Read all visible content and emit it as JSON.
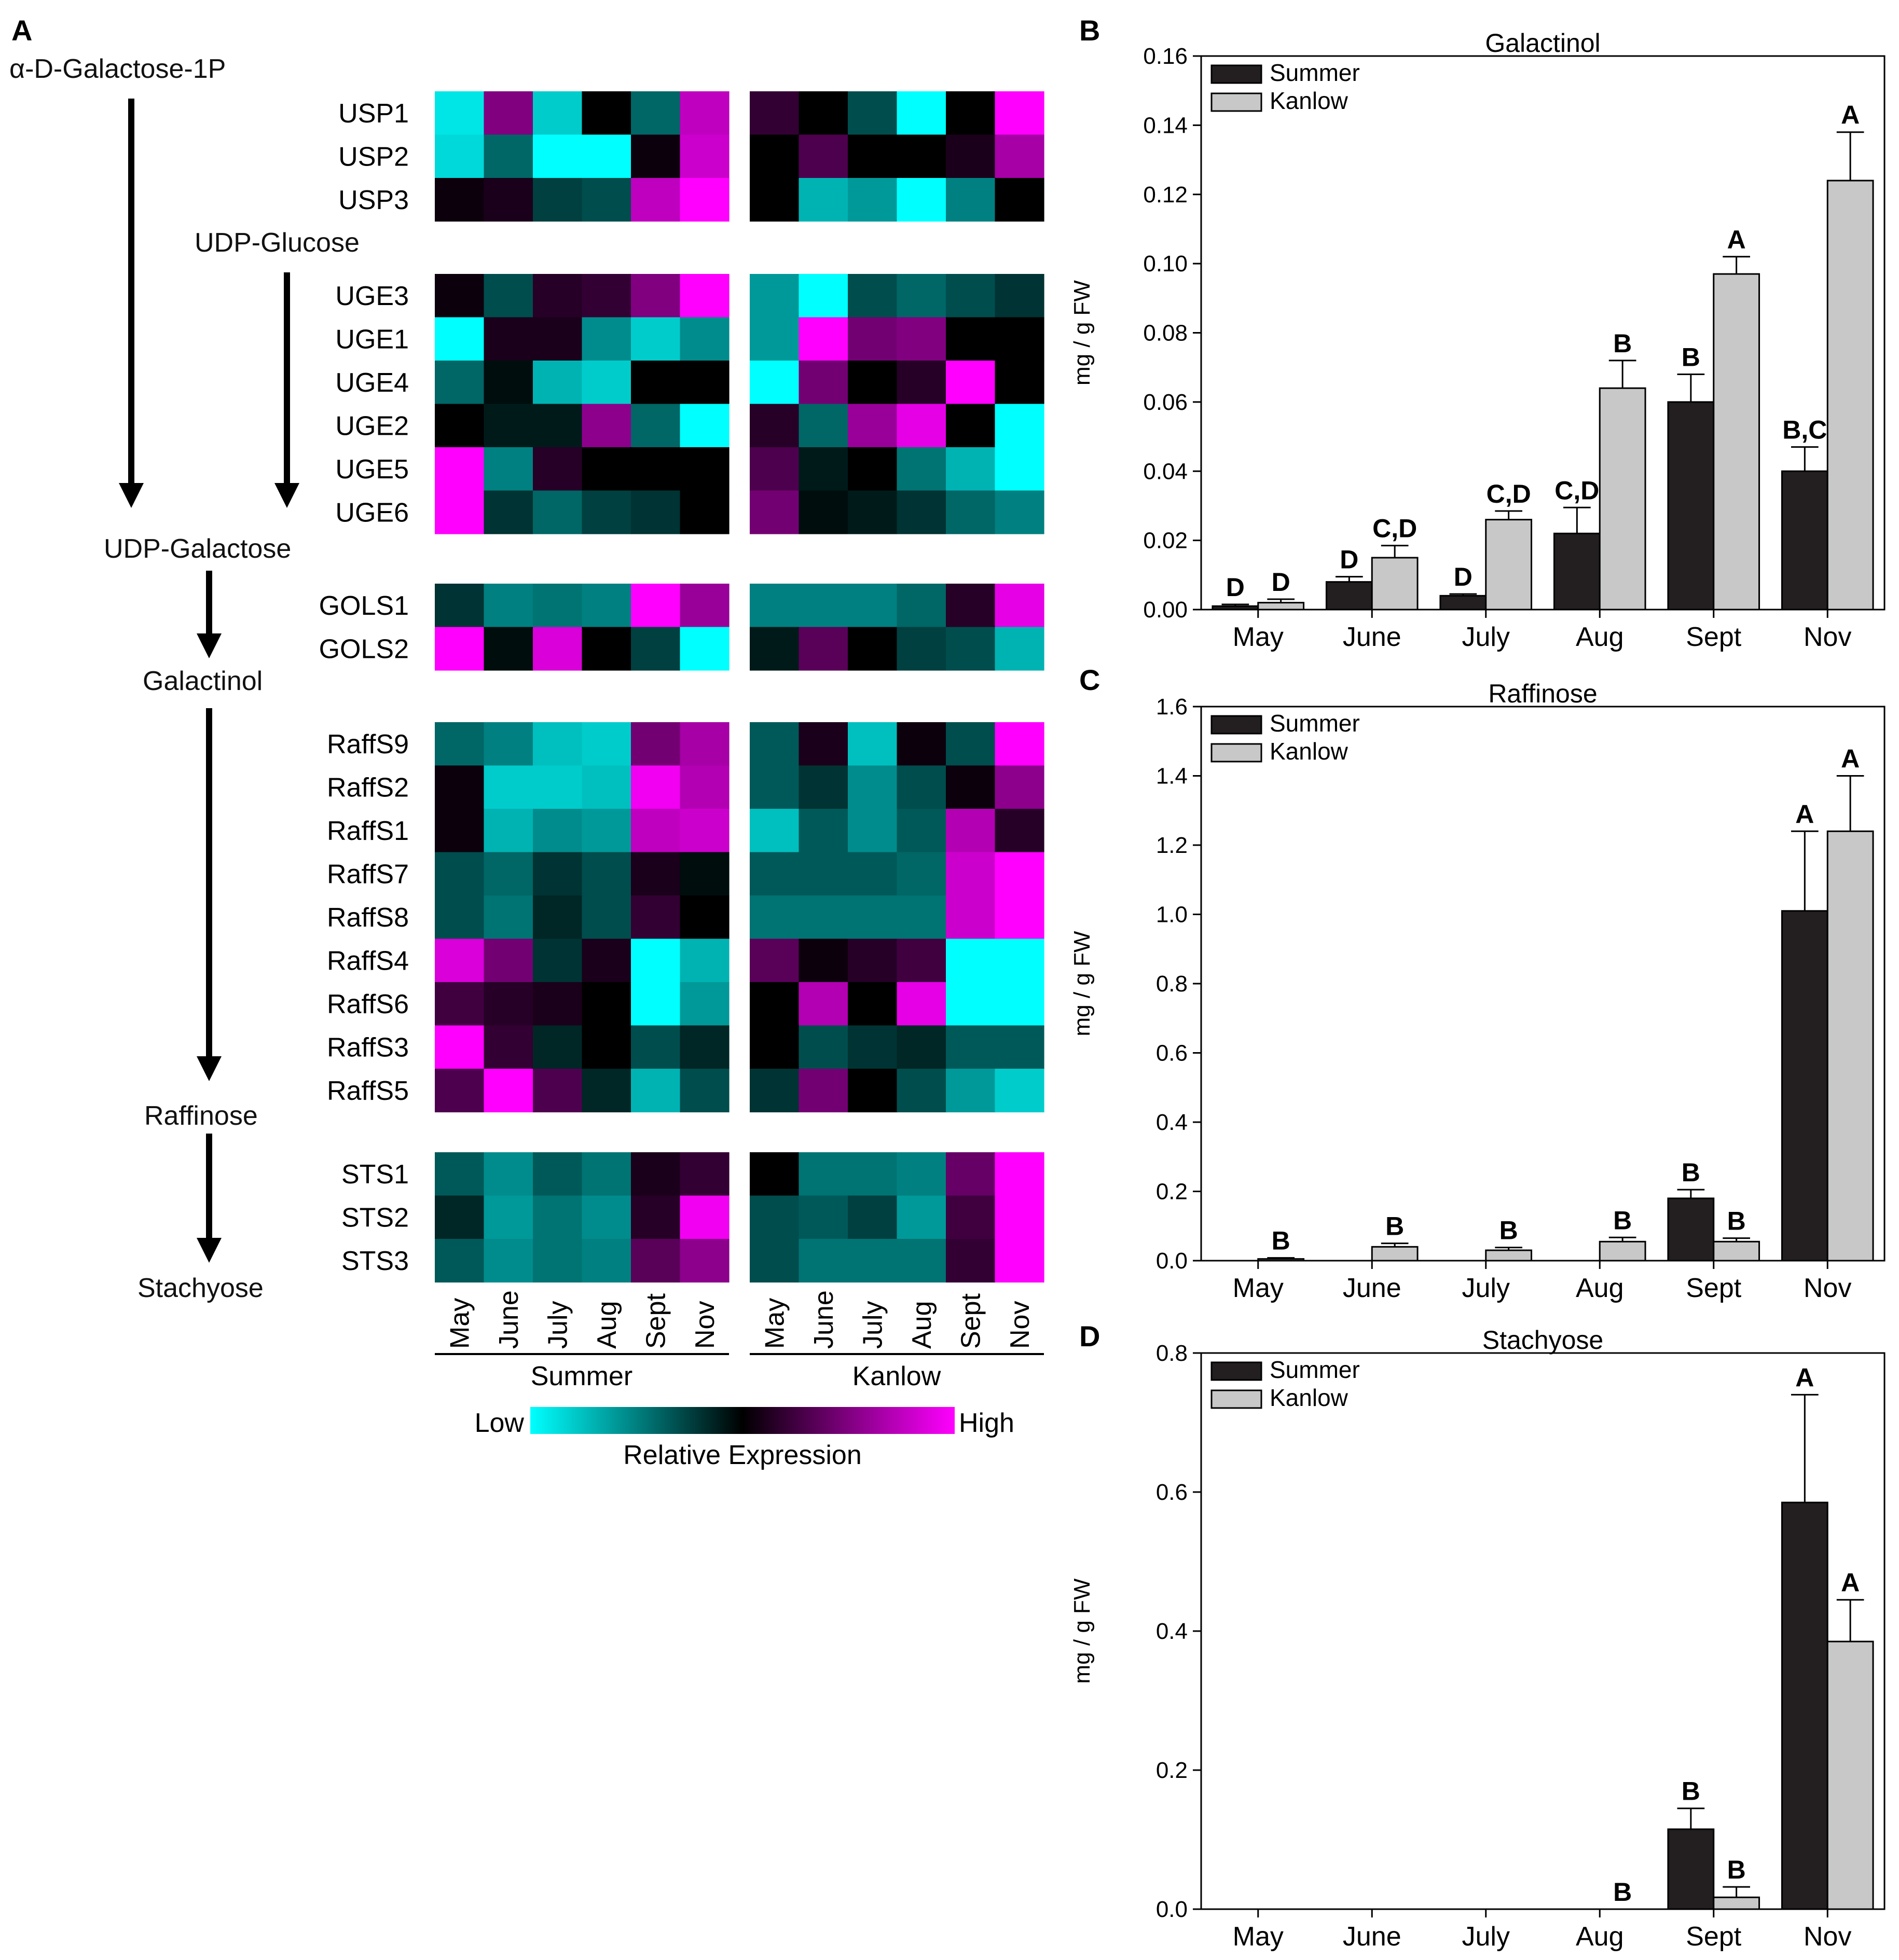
{
  "panel_letters": {
    "a": "A",
    "b": "B",
    "c": "C",
    "d": "D"
  },
  "pathway": {
    "compounds": [
      "α-D-Galactose-1P",
      "UDP-Glucose",
      "UDP-Galactose",
      "Galactinol",
      "Raffinose",
      "Stachyose"
    ]
  },
  "heatmap": {
    "groups": [
      "Summer",
      "Kanlow"
    ],
    "months": [
      "May",
      "June",
      "July",
      "Aug",
      "Sept",
      "Nov"
    ],
    "legend": {
      "low": "Low",
      "high": "High",
      "title": "Relative Expression",
      "colors": [
        "#00ffff",
        "#000000",
        "#ff00ff"
      ]
    },
    "blocks": [
      {
        "genes": [
          "USP1",
          "USP2",
          "USP3"
        ]
      },
      {
        "genes": [
          "UGE3",
          "UGE1",
          "UGE4",
          "UGE2",
          "UGE5",
          "UGE6"
        ]
      },
      {
        "genes": [
          "GOLS1",
          "GOLS2"
        ]
      },
      {
        "genes": [
          "RaffS9",
          "RaffS2",
          "RaffS1",
          "RaffS7",
          "RaffS8",
          "RaffS4",
          "RaffS6",
          "RaffS3",
          "RaffS5"
        ]
      },
      {
        "genes": [
          "STS1",
          "STS2",
          "STS3"
        ]
      }
    ]
  },
  "chart_data": [
    {
      "type": "heatmap",
      "scale": "-1 (Low, cyan) to 1 (High, magenta)",
      "columns": [
        "Summer May",
        "Summer June",
        "Summer July",
        "Summer Aug",
        "Summer Sept",
        "Summer Nov",
        "Kanlow May",
        "Kanlow June",
        "Kanlow July",
        "Kanlow Aug",
        "Kanlow Sept",
        "Kanlow Nov"
      ],
      "rows": {
        "USP1": [
          -0.9,
          0.5,
          -0.8,
          0.0,
          -0.4,
          0.75,
          0.2,
          0.0,
          -0.3,
          -1.0,
          0.0,
          1.0
        ],
        "USP2": [
          -0.85,
          -0.4,
          -1.0,
          -1.0,
          0.05,
          0.8,
          0.0,
          0.3,
          0.0,
          0.0,
          0.1,
          0.65
        ],
        "USP3": [
          0.05,
          0.1,
          -0.25,
          -0.3,
          0.75,
          1.0,
          0.0,
          -0.7,
          -0.6,
          -1.0,
          -0.5,
          0.0
        ],
        "UGE3": [
          0.05,
          -0.3,
          0.15,
          0.2,
          0.5,
          1.0,
          -0.6,
          -1.0,
          -0.3,
          -0.4,
          -0.3,
          -0.2
        ],
        "UGE1": [
          -1.0,
          0.1,
          0.1,
          -0.55,
          -0.8,
          -0.55,
          -0.6,
          1.0,
          0.45,
          0.5,
          0.0,
          0.0
        ],
        "UGE4": [
          -0.4,
          -0.05,
          -0.7,
          -0.8,
          0.0,
          0.0,
          -1.0,
          0.45,
          0.0,
          0.15,
          1.0,
          0.0
        ],
        "UGE2": [
          0.0,
          -0.1,
          -0.1,
          0.55,
          -0.4,
          -1.0,
          0.15,
          -0.4,
          0.6,
          0.9,
          0.0,
          -1.0
        ],
        "UGE5": [
          1.0,
          -0.5,
          0.15,
          0.0,
          0.0,
          0.0,
          0.3,
          -0.1,
          0.0,
          -0.45,
          -0.7,
          -1.0
        ],
        "UGE6": [
          1.0,
          -0.2,
          -0.4,
          -0.25,
          -0.2,
          0.0,
          0.45,
          -0.05,
          -0.1,
          -0.2,
          -0.4,
          -0.5
        ],
        "GOLS1": [
          -0.2,
          -0.5,
          -0.45,
          -0.5,
          1.0,
          0.6,
          -0.5,
          -0.5,
          -0.5,
          -0.4,
          0.15,
          0.9
        ],
        "GOLS2": [
          1.0,
          -0.05,
          0.85,
          0.0,
          -0.25,
          -1.0,
          -0.1,
          0.35,
          0.0,
          -0.25,
          -0.3,
          -0.7
        ],
        "RaffS9": [
          -0.4,
          -0.5,
          -0.75,
          -0.8,
          0.45,
          0.65,
          -0.35,
          0.1,
          -0.75,
          0.05,
          -0.3,
          1.0
        ],
        "RaffS2": [
          0.05,
          -0.8,
          -0.8,
          -0.75,
          0.95,
          0.7,
          -0.35,
          -0.2,
          -0.55,
          -0.3,
          0.05,
          0.55
        ],
        "RaffS1": [
          0.05,
          -0.7,
          -0.55,
          -0.6,
          0.75,
          0.8,
          -0.75,
          -0.35,
          -0.55,
          -0.35,
          0.7,
          0.15
        ],
        "RaffS7": [
          -0.3,
          -0.4,
          -0.2,
          -0.3,
          0.1,
          -0.05,
          -0.35,
          -0.35,
          -0.35,
          -0.4,
          0.8,
          1.0
        ],
        "RaffS8": [
          -0.3,
          -0.45,
          -0.15,
          -0.3,
          0.2,
          0.0,
          -0.45,
          -0.45,
          -0.45,
          -0.45,
          0.8,
          1.0
        ],
        "RaffS4": [
          0.85,
          0.45,
          -0.2,
          0.1,
          -1.0,
          -0.7,
          0.35,
          0.05,
          0.15,
          0.25,
          -1.0,
          -1.0
        ],
        "RaffS6": [
          0.25,
          0.15,
          0.1,
          0.0,
          -1.0,
          -0.6,
          0.0,
          0.7,
          0.0,
          0.9,
          -1.0,
          -1.0
        ],
        "RaffS3": [
          1.0,
          0.2,
          -0.15,
          0.0,
          -0.3,
          -0.15,
          0.0,
          -0.3,
          -0.2,
          -0.15,
          -0.35,
          -0.35
        ],
        "RaffS5": [
          0.3,
          1.0,
          0.3,
          -0.15,
          -0.7,
          -0.3,
          -0.2,
          0.45,
          0.0,
          -0.3,
          -0.6,
          -0.8
        ],
        "STS1": [
          -0.35,
          -0.55,
          -0.35,
          -0.45,
          0.1,
          0.2,
          0.0,
          -0.45,
          -0.45,
          -0.5,
          0.4,
          1.0
        ],
        "STS2": [
          -0.15,
          -0.6,
          -0.45,
          -0.55,
          0.15,
          0.95,
          -0.3,
          -0.35,
          -0.25,
          -0.6,
          0.25,
          1.0
        ],
        "STS3": [
          -0.35,
          -0.55,
          -0.45,
          -0.5,
          0.35,
          0.55,
          -0.3,
          -0.45,
          -0.45,
          -0.45,
          0.2,
          1.0
        ]
      }
    },
    {
      "type": "bar",
      "title": "Galactinol",
      "ylabel": "mg / g FW",
      "ylim": [
        0,
        0.16
      ],
      "yticks": [
        "0.00",
        "0.02",
        "0.04",
        "0.06",
        "0.08",
        "0.10",
        "0.12",
        "0.14",
        "0.16"
      ],
      "categories": [
        "May",
        "June",
        "July",
        "Aug",
        "Sept",
        "Nov"
      ],
      "series": [
        {
          "name": "Summer",
          "color": "#231f20",
          "values": [
            0.001,
            0.008,
            0.004,
            0.022,
            0.06,
            0.04
          ],
          "errors": [
            0.0005,
            0.0015,
            0.0005,
            0.0075,
            0.008,
            0.007
          ]
        },
        {
          "name": "Kanlow",
          "color": "#c8c8c8",
          "values": [
            0.002,
            0.015,
            0.026,
            0.064,
            0.097,
            0.124
          ],
          "errors": [
            0.001,
            0.0035,
            0.0025,
            0.008,
            0.005,
            0.014
          ]
        }
      ],
      "annotations": [
        {
          "series": "Summer",
          "category": "May",
          "label": "D"
        },
        {
          "series": "Kanlow",
          "category": "May",
          "label": "D"
        },
        {
          "series": "Summer",
          "category": "June",
          "label": "D"
        },
        {
          "series": "Kanlow",
          "category": "June",
          "label": "C,D"
        },
        {
          "series": "Summer",
          "category": "July",
          "label": "D"
        },
        {
          "series": "Kanlow",
          "category": "July",
          "label": "C,D"
        },
        {
          "series": "Summer",
          "category": "Aug",
          "label": "C,D"
        },
        {
          "series": "Kanlow",
          "category": "Aug",
          "label": "B"
        },
        {
          "series": "Summer",
          "category": "Sept",
          "label": "B"
        },
        {
          "series": "Kanlow",
          "category": "Sept",
          "label": "A"
        },
        {
          "series": "Summer",
          "category": "Nov",
          "label": "B,C"
        },
        {
          "series": "Kanlow",
          "category": "Nov",
          "label": "A"
        }
      ]
    },
    {
      "type": "bar",
      "title": "Raffinose",
      "ylabel": "mg / g FW",
      "ylim": [
        0,
        1.6
      ],
      "yticks": [
        "0.0",
        "0.2",
        "0.4",
        "0.6",
        "0.8",
        "1.0",
        "1.2",
        "1.4",
        "1.6"
      ],
      "categories": [
        "May",
        "June",
        "July",
        "Aug",
        "Sept",
        "Nov"
      ],
      "series": [
        {
          "name": "Summer",
          "color": "#231f20",
          "values": [
            0,
            0,
            0,
            0,
            0.18,
            1.01
          ],
          "errors": [
            0,
            0,
            0,
            0,
            0.025,
            0.23
          ]
        },
        {
          "name": "Kanlow",
          "color": "#c8c8c8",
          "values": [
            0.005,
            0.04,
            0.03,
            0.055,
            0.055,
            1.24
          ],
          "errors": [
            0.003,
            0.01,
            0.008,
            0.012,
            0.01,
            0.16
          ]
        }
      ],
      "annotations": [
        {
          "series": "Kanlow",
          "category": "May",
          "label": "B"
        },
        {
          "series": "Kanlow",
          "category": "June",
          "label": "B"
        },
        {
          "series": "Kanlow",
          "category": "July",
          "label": "B"
        },
        {
          "series": "Kanlow",
          "category": "Aug",
          "label": "B"
        },
        {
          "series": "Summer",
          "category": "Sept",
          "label": "B"
        },
        {
          "series": "Kanlow",
          "category": "Sept",
          "label": "B"
        },
        {
          "series": "Summer",
          "category": "Nov",
          "label": "A"
        },
        {
          "series": "Kanlow",
          "category": "Nov",
          "label": "A"
        }
      ]
    },
    {
      "type": "bar",
      "title": "Stachyose",
      "ylabel": "mg / g FW",
      "ylim": [
        0,
        0.8
      ],
      "yticks": [
        "0.0",
        "0.2",
        "0.4",
        "0.6",
        "0.8"
      ],
      "categories": [
        "May",
        "June",
        "July",
        "Aug",
        "Sept",
        "Nov"
      ],
      "series": [
        {
          "name": "Summer",
          "color": "#231f20",
          "values": [
            0,
            0,
            0,
            0,
            0.115,
            0.585
          ],
          "errors": [
            0,
            0,
            0,
            0,
            0.03,
            0.155
          ]
        },
        {
          "name": "Kanlow",
          "color": "#c8c8c8",
          "values": [
            0,
            0,
            0,
            0,
            0.017,
            0.385
          ],
          "errors": [
            0,
            0,
            0,
            0,
            0.015,
            0.06
          ]
        }
      ],
      "annotations": [
        {
          "series": "Kanlow",
          "category": "Aug",
          "label": "B"
        },
        {
          "series": "Summer",
          "category": "Sept",
          "label": "B"
        },
        {
          "series": "Kanlow",
          "category": "Sept",
          "label": "B"
        },
        {
          "series": "Summer",
          "category": "Nov",
          "label": "A"
        },
        {
          "series": "Kanlow",
          "category": "Nov",
          "label": "A"
        }
      ]
    }
  ]
}
